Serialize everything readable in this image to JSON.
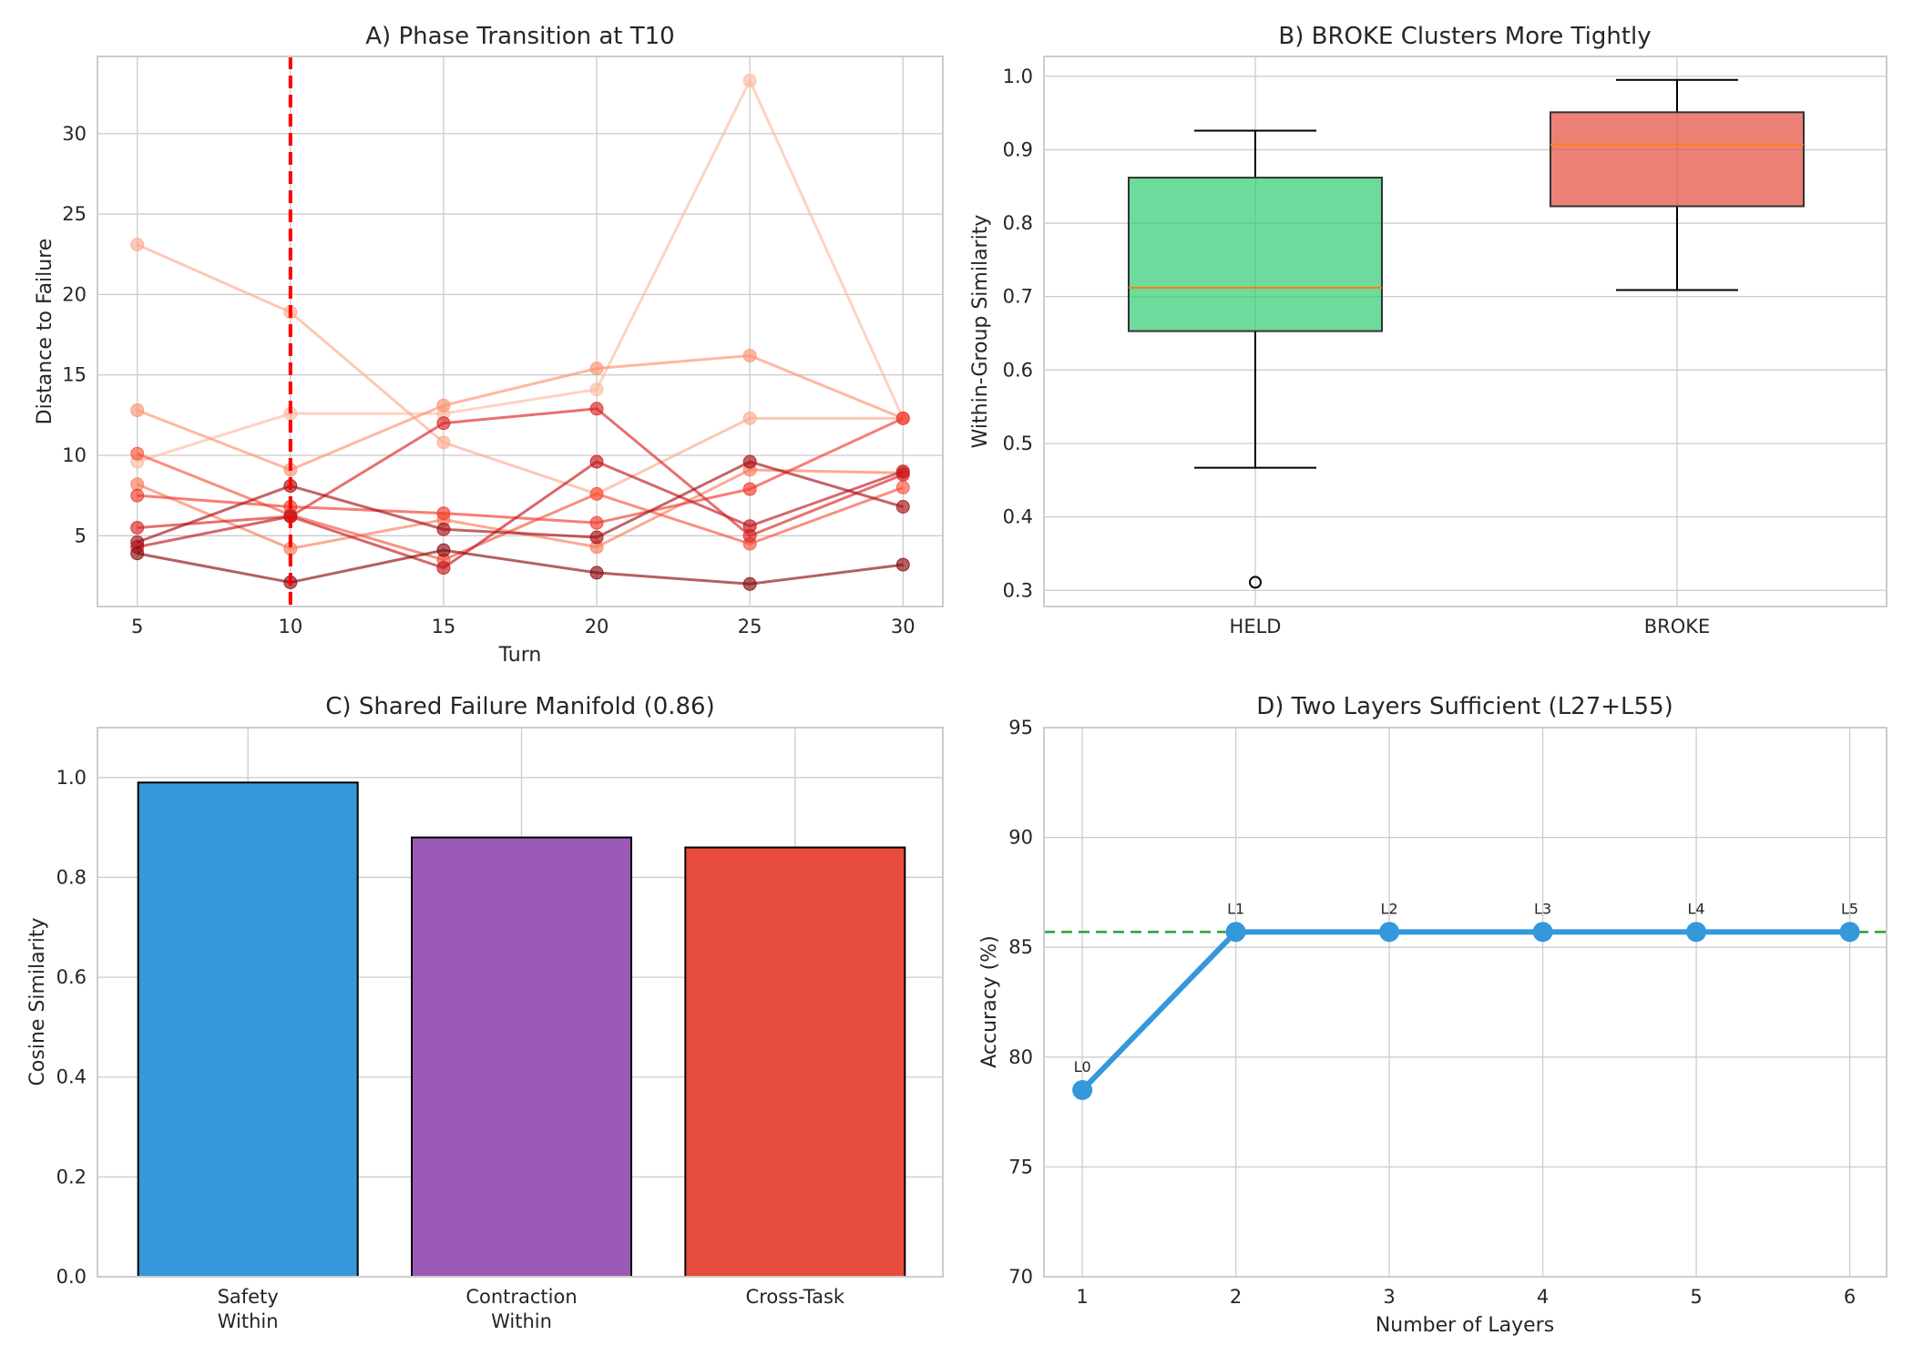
{
  "chart_data": [
    {
      "id": "A",
      "type": "line",
      "title": "A) Phase Transition at T10",
      "xlabel": "Turn",
      "ylabel": "Distance to Failure",
      "x": [
        5,
        10,
        15,
        20,
        25,
        30
      ],
      "xticks": [
        5,
        10,
        15,
        20,
        25,
        30
      ],
      "yticks": [
        5,
        10,
        15,
        20,
        25,
        30
      ],
      "xlim": [
        3.7,
        31.3
      ],
      "ylim": [
        0.6,
        34.8
      ],
      "grid": true,
      "vline": {
        "x": 10,
        "color": "#ff0000",
        "style": "dashed"
      },
      "series": [
        {
          "values": [
            9.6,
            12.6,
            12.6,
            14.1,
            33.3,
            12.3
          ],
          "color": "#fcbba1"
        },
        {
          "values": [
            23.1,
            18.9,
            10.8,
            7.6,
            12.3,
            12.3
          ],
          "color": "#fcaa8e"
        },
        {
          "values": [
            12.8,
            9.1,
            13.1,
            15.4,
            16.2,
            12.3
          ],
          "color": "#fc9272"
        },
        {
          "values": [
            8.2,
            4.2,
            6.0,
            4.3,
            9.1,
            8.9
          ],
          "color": "#fb7b5b"
        },
        {
          "values": [
            10.1,
            6.3,
            3.5,
            7.6,
            4.5,
            8.0
          ],
          "color": "#f6553c"
        },
        {
          "values": [
            7.5,
            6.8,
            6.4,
            5.8,
            7.9,
            12.3
          ],
          "color": "#ef3b2c"
        },
        {
          "values": [
            5.5,
            6.2,
            12.0,
            12.9,
            5.0,
            8.8
          ],
          "color": "#d92523"
        },
        {
          "values": [
            4.3,
            6.2,
            3.0,
            9.6,
            5.6,
            9.0
          ],
          "color": "#c1161c"
        },
        {
          "values": [
            4.6,
            8.1,
            5.4,
            4.9,
            9.6,
            6.8
          ],
          "color": "#a50f15"
        },
        {
          "values": [
            3.9,
            2.1,
            4.1,
            2.7,
            2.0,
            3.2
          ],
          "color": "#8b0a10"
        }
      ]
    },
    {
      "id": "B",
      "type": "box",
      "title": "B) BROKE Clusters More Tightly",
      "xlabel": "",
      "ylabel": "Within-Group Similarity",
      "categories": [
        "HELD",
        "BROKE"
      ],
      "yticks": [
        0.3,
        0.4,
        0.5,
        0.6,
        0.7,
        0.8,
        0.9,
        1.0
      ],
      "ylim": [
        0.278,
        1.027
      ],
      "grid": true,
      "boxes": [
        {
          "whisker_low": 0.467,
          "q1": 0.653,
          "median": 0.712,
          "q3": 0.862,
          "whisker_high": 0.926,
          "outliers": [
            0.311
          ],
          "color": "#2ecc71"
        },
        {
          "whisker_low": 0.709,
          "q1": 0.823,
          "median": 0.907,
          "q3": 0.951,
          "whisker_high": 0.995,
          "outliers": [],
          "color": "#e74c3c"
        }
      ],
      "median_color": "#ff7f0e"
    },
    {
      "id": "C",
      "type": "bar",
      "title": "C) Shared Failure Manifold (0.86)",
      "xlabel": "",
      "ylabel": "Cosine Similarity",
      "categories": [
        [
          "Safety",
          "Within"
        ],
        [
          "Contraction",
          "Within"
        ],
        [
          "Cross-Task"
        ]
      ],
      "values": [
        0.99,
        0.88,
        0.86
      ],
      "colors": [
        "#3498db",
        "#9b59b6",
        "#e74c3c"
      ],
      "yticks": [
        0.0,
        0.2,
        0.4,
        0.6,
        0.8,
        1.0
      ],
      "ylim": [
        0,
        1.1
      ],
      "grid": true
    },
    {
      "id": "D",
      "type": "line",
      "title": "D) Two Layers Sufficient (L27+L55)",
      "xlabel": "Number of Layers",
      "ylabel": "Accuracy (%)",
      "x": [
        1,
        2,
        3,
        4,
        5,
        6
      ],
      "values": [
        78.5,
        85.7,
        85.7,
        85.7,
        85.7,
        85.7
      ],
      "point_labels": [
        "L0",
        "L1",
        "L2",
        "L3",
        "L4",
        "L5"
      ],
      "color": "#3498db",
      "hline": {
        "y": 85.7,
        "color": "#2ca02c",
        "style": "dashed"
      },
      "xticks": [
        1,
        2,
        3,
        4,
        5,
        6
      ],
      "yticks": [
        70,
        75,
        80,
        85,
        90,
        95
      ],
      "xlim": [
        0.75,
        6.24
      ],
      "ylim": [
        70,
        95
      ],
      "grid": true
    }
  ]
}
